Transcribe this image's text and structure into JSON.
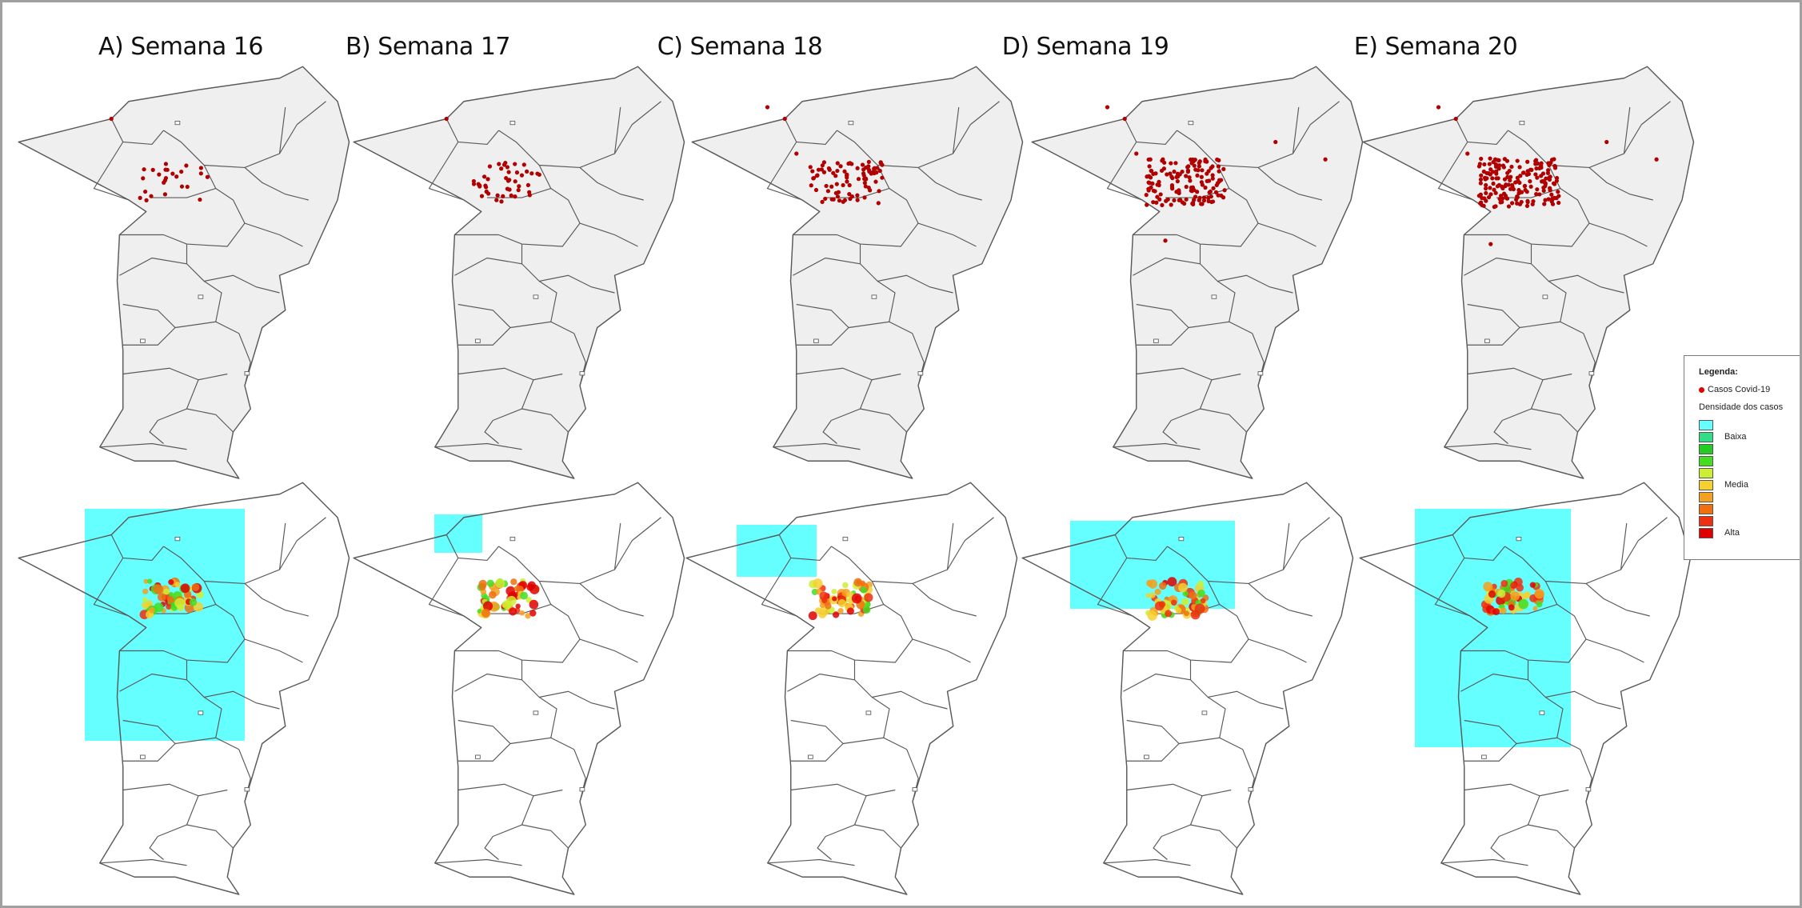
{
  "panels": [
    {
      "title": "A) Semana 16",
      "case_level": "low"
    },
    {
      "title": "B) Semana 17",
      "case_level": "low-medium"
    },
    {
      "title": "C) Semana 18",
      "case_level": "medium"
    },
    {
      "title": "D) Semana 19",
      "case_level": "high"
    },
    {
      "title": "E) Semana 20",
      "case_level": "very-high"
    }
  ],
  "legend": {
    "title": "Legenda:",
    "cases_label": "Casos Covid-19",
    "density_label": "Densidade dos casos",
    "levels": [
      "Baixa",
      "Media",
      "Alta"
    ],
    "scale_colors": [
      "#66ffff",
      "#33dd88",
      "#22cc22",
      "#44dd22",
      "#ccee33",
      "#f5d030",
      "#f5a020",
      "#f07010",
      "#ee3010",
      "#e00000"
    ]
  },
  "colors": {
    "case_dot": "#b00000",
    "map_fill_top": "#efefef",
    "map_stroke": "#5a5a5a",
    "density_background": "#66ffff"
  }
}
